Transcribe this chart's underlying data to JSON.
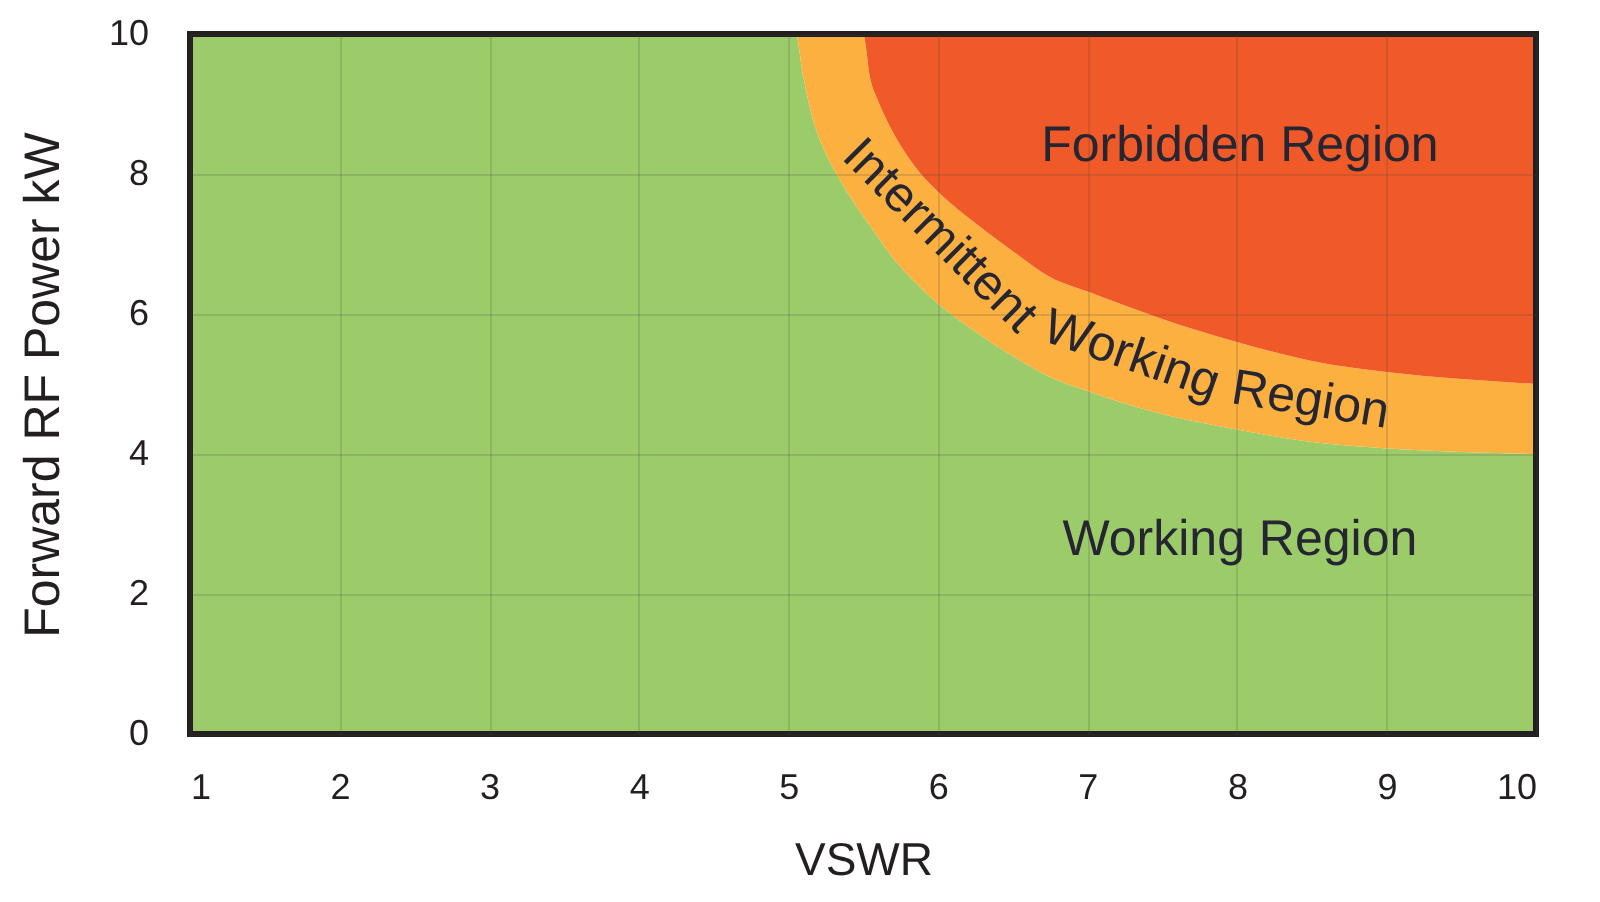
{
  "chart_data": {
    "type": "area",
    "stacked": true,
    "xlabel": "VSWR",
    "ylabel": "Forward RF Power kW",
    "x": [
      1,
      5.05,
      5.1,
      5.15,
      5.25,
      5.35,
      5.5,
      5.55,
      5.6,
      5.7,
      5.85,
      6,
      6.25,
      6.5,
      6.75,
      7,
      7.5,
      8,
      8.5,
      9,
      9.5,
      10
    ],
    "xlim": [
      1,
      10
    ],
    "ylim": [
      0,
      10
    ],
    "xticks": [
      1,
      2,
      3,
      4,
      5,
      6,
      7,
      8,
      9,
      10
    ],
    "yticks": [
      0,
      2,
      4,
      6,
      8,
      10
    ],
    "grid": true,
    "series": [
      {
        "name": "Working Region",
        "color": "#9ccb6a",
        "values": [
          10,
          10,
          9.4,
          8.9,
          8.3,
          7.9,
          7.4,
          7.25,
          7.1,
          6.8,
          6.45,
          6.15,
          5.75,
          5.4,
          5.1,
          4.9,
          4.57,
          4.35,
          4.17,
          4.08,
          4.03,
          4.0
        ]
      },
      {
        "name": "Intermittent Working Region",
        "color": "#fbb040",
        "values": [
          0,
          0,
          0.6,
          1.1,
          1.7,
          2.1,
          2.6,
          2.1,
          1.95,
          1.8,
          1.65,
          1.6,
          1.55,
          1.5,
          1.43,
          1.42,
          1.36,
          1.25,
          1.16,
          1.09,
          1.04,
          1.0
        ]
      },
      {
        "name": "Forbidden Region",
        "color": "#f05a28",
        "values": [
          0,
          0,
          0,
          0,
          0,
          0,
          0,
          0.65,
          0.95,
          1.4,
          1.9,
          2.25,
          2.7,
          3.1,
          3.47,
          3.68,
          4.07,
          4.4,
          4.67,
          4.83,
          4.93,
          5.0
        ]
      }
    ]
  }
}
